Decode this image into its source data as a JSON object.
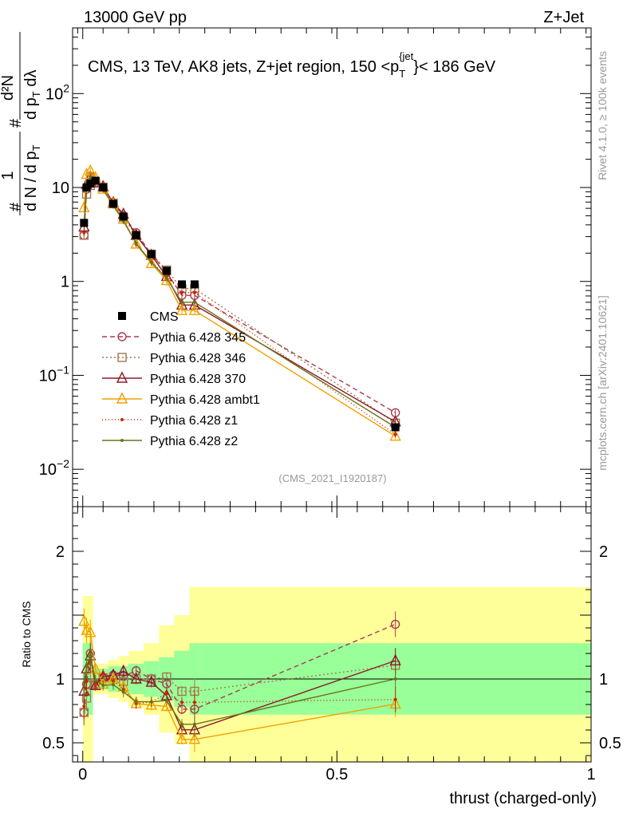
{
  "header": {
    "left": "13000 GeV pp",
    "right": "Z+Jet"
  },
  "side_labels": {
    "rivet": "Rivet 4.1.0, ≥ 100k events",
    "mcplots": "mcplots.cern.ch [arXiv:2401.10621]"
  },
  "chart_data": {
    "type": "line",
    "title": "CMS, 13 TeV, AK8 jets, Z+jet region, 150 <p_T^{jet}< 186 GeV",
    "title_parts": {
      "main": "CMS, 13 TeV, AK8 jets, Z+jet region, 150 <p",
      "sub": "T",
      "sup": "{jet",
      "tail": "}< 186 GeV"
    },
    "analysis_tag": "(CMS_2021_I1920187)",
    "ylabel": "1/dN/dp_T dN/dp_T dλ",
    "ylabel_parts": {
      "hash": "#",
      "num1": "1",
      "den1": "d N / d p",
      "den1sub": "T",
      "num2": "d²N",
      "den2": "d p",
      "den2sub": "T",
      "den2tail": " dλ"
    },
    "ratio_ylabel": "Ratio to CMS",
    "xlabel": "thrust (charged-only)",
    "xlim": [
      -0.02,
      1.0
    ],
    "ylim_main": [
      0.004,
      500
    ],
    "ylim_ratio": [
      0.35,
      2.35
    ],
    "x_ticks": [
      {
        "v": 0,
        "label": "0"
      },
      {
        "v": 0.5,
        "label": "0.5"
      },
      {
        "v": 1,
        "label": "1"
      }
    ],
    "y_ticks_main": [
      {
        "v": 0.01,
        "base": "10",
        "exp": "−2"
      },
      {
        "v": 0.1,
        "base": "10",
        "exp": "−1"
      },
      {
        "v": 1,
        "base": "1",
        "exp": ""
      },
      {
        "v": 10,
        "base": "10",
        "exp": ""
      },
      {
        "v": 100,
        "base": "10",
        "exp": "2"
      }
    ],
    "y_ticks_ratio": [
      {
        "v": 0.5,
        "label": "0.5"
      },
      {
        "v": 1,
        "label": "1"
      },
      {
        "v": 2,
        "label": "2"
      }
    ],
    "bin_edges": [
      0,
      0.005,
      0.01,
      0.02,
      0.03,
      0.05,
      0.07,
      0.09,
      0.12,
      0.15,
      0.18,
      0.21,
      0.23,
      1.0
    ],
    "x": [
      0.0025,
      0.0075,
      0.015,
      0.025,
      0.04,
      0.06,
      0.08,
      0.105,
      0.135,
      0.165,
      0.195,
      0.22,
      0.615
    ],
    "data": {
      "name": "CMS",
      "color": "#000000",
      "values": [
        4.2,
        10.0,
        11.0,
        11.8,
        10.0,
        6.7,
        4.9,
        3.1,
        1.95,
        1.3,
        0.93,
        0.93,
        0.028
      ],
      "band_inner": [
        0.28,
        0.28,
        0.28,
        0.09,
        0.08,
        0.1,
        0.1,
        0.12,
        0.14,
        0.17,
        0.22,
        0.28,
        0.28
      ],
      "band_outer": [
        0.65,
        0.65,
        0.65,
        0.12,
        0.12,
        0.15,
        0.18,
        0.22,
        0.28,
        0.42,
        0.5,
        0.72,
        0.72
      ]
    },
    "series": [
      {
        "name": "Pythia 6.428 345",
        "color": "#a83c50",
        "dash": "6,4",
        "marker": "circle-open",
        "values": [
          3.1,
          9.6,
          13.2,
          11.3,
          10.1,
          6.9,
          5.0,
          3.3,
          1.95,
          1.25,
          0.71,
          0.71,
          0.04
        ]
      },
      {
        "name": "Pythia 6.428 346",
        "color": "#a07a50",
        "dash": "2,3",
        "marker": "square-open",
        "values": [
          3.1,
          8.5,
          10.5,
          11.4,
          10.1,
          6.8,
          4.8,
          3.1,
          1.95,
          1.32,
          0.84,
          0.84,
          0.031
        ]
      },
      {
        "name": "Pythia 6.428 370",
        "color": "#8b1a2a",
        "dash": "",
        "marker": "triangle-open",
        "values": [
          3.8,
          10.8,
          13.0,
          11.2,
          10.2,
          6.9,
          5.2,
          3.1,
          1.9,
          1.13,
          0.56,
          0.56,
          0.032
        ]
      },
      {
        "name": "Pythia 6.428 ambt1",
        "color": "#f0a000",
        "dash": "",
        "marker": "triangle-open",
        "values": [
          6.1,
          13.8,
          15.0,
          12.7,
          9.6,
          6.7,
          4.6,
          2.5,
          1.55,
          1.02,
          0.49,
          0.49,
          0.0225
        ]
      },
      {
        "name": "Pythia 6.428 z1",
        "color": "#d02000",
        "dash": "1,3",
        "marker": "dot",
        "values": [
          3.3,
          9.8,
          12.6,
          11.2,
          10.4,
          6.6,
          4.5,
          2.5,
          1.6,
          1.15,
          0.76,
          0.76,
          0.0235
        ]
      },
      {
        "name": "Pythia 6.428 z2",
        "color": "#6b7418",
        "dash": "",
        "marker": "dot",
        "values": [
          4.0,
          11.0,
          13.0,
          11.7,
          9.5,
          6.4,
          4.4,
          2.55,
          1.6,
          1.08,
          0.6,
          0.6,
          0.028
        ]
      }
    ]
  }
}
